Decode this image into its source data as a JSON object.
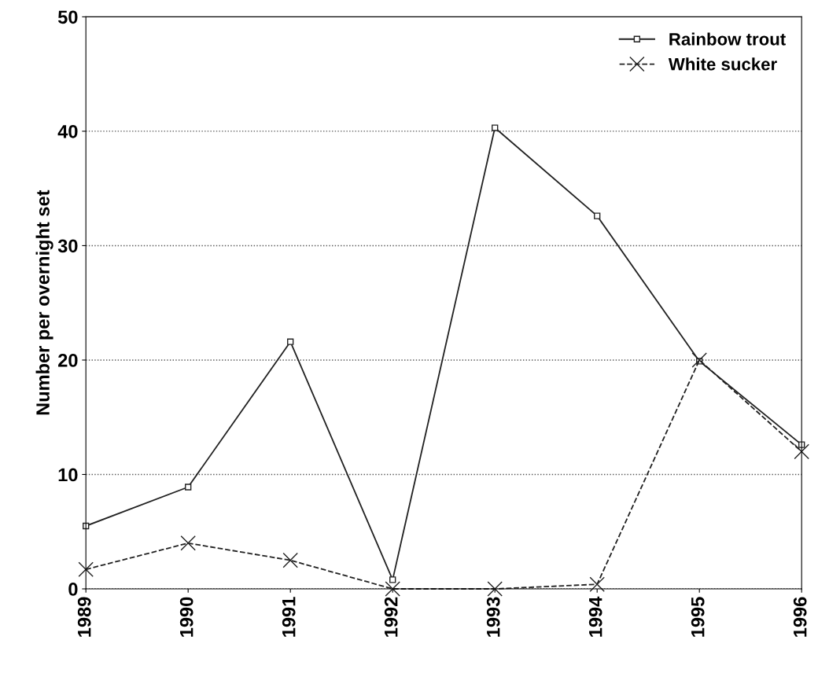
{
  "chart_data": {
    "type": "line",
    "ylabel": "Number per overnight set",
    "categories": [
      "1989",
      "1990",
      "1991",
      "1992",
      "1993",
      "1994",
      "1995",
      "1996"
    ],
    "series": [
      {
        "name": "Rainbow trout",
        "color": "#222222",
        "marker": "square",
        "line_style": "solid",
        "values": [
          5.5,
          8.9,
          21.6,
          0.8,
          40.3,
          32.6,
          19.9,
          12.6
        ]
      },
      {
        "name": "White sucker",
        "color": "#222222",
        "marker": "cross",
        "line_style": "dashed",
        "values": [
          1.7,
          4.0,
          2.5,
          0,
          0,
          0.4,
          20.0,
          12.0
        ]
      }
    ],
    "ylim": [
      0,
      50
    ],
    "yticks": [
      0,
      10,
      20,
      30,
      40,
      50
    ],
    "grid": "y",
    "legend": "top right"
  }
}
